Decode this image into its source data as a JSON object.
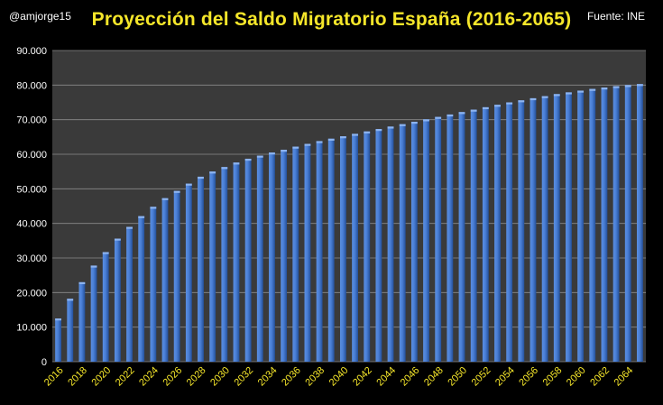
{
  "header": {
    "author": "@amjorge15",
    "title": "Proyección del Saldo Migratorio España (2016-2065)",
    "source": "Fuente: INE"
  },
  "colors": {
    "background": "#000000",
    "plot_area": "#3a3a3a",
    "title": "#f5e62a",
    "bar": "#3f74c8",
    "bar_highlight": "#8db4f0",
    "x_tick": "#f5e62a",
    "y_tick": "#ffffff"
  },
  "chart_data": {
    "type": "bar",
    "title": "Proyección del Saldo Migratorio España (2016-2065)",
    "xlabel": "",
    "ylabel": "",
    "ylim": [
      0,
      90000
    ],
    "y_ticks": [
      "0",
      "10.000",
      "20.000",
      "30.000",
      "40.000",
      "50.000",
      "60.000",
      "70.000",
      "80.000",
      "90.000"
    ],
    "x_tick_labels": [
      "2016",
      "2018",
      "2020",
      "2022",
      "2024",
      "2026",
      "2028",
      "2030",
      "2032",
      "2034",
      "2036",
      "2038",
      "2040",
      "2042",
      "2044",
      "2046",
      "2048",
      "2050",
      "2052",
      "2054",
      "2056",
      "2058",
      "2060",
      "2062",
      "2064"
    ],
    "grid": true,
    "legend": "none",
    "categories": [
      "2016",
      "2017",
      "2018",
      "2019",
      "2020",
      "2021",
      "2022",
      "2023",
      "2024",
      "2025",
      "2026",
      "2027",
      "2028",
      "2029",
      "2030",
      "2031",
      "2032",
      "2033",
      "2034",
      "2035",
      "2036",
      "2037",
      "2038",
      "2039",
      "2040",
      "2041",
      "2042",
      "2043",
      "2044",
      "2045",
      "2046",
      "2047",
      "2048",
      "2049",
      "2050",
      "2051",
      "2052",
      "2053",
      "2054",
      "2055",
      "2056",
      "2057",
      "2058",
      "2059",
      "2060",
      "2061",
      "2062",
      "2063",
      "2064",
      "2065"
    ],
    "values": [
      12500,
      18200,
      23000,
      27800,
      31700,
      35600,
      39000,
      42100,
      44800,
      47300,
      49400,
      51500,
      53500,
      55000,
      56300,
      57600,
      58700,
      59600,
      60500,
      61300,
      62200,
      63000,
      63800,
      64500,
      65200,
      65900,
      66600,
      67300,
      68000,
      68700,
      69400,
      70100,
      70800,
      71500,
      72200,
      72900,
      73600,
      74300,
      75000,
      75600,
      76200,
      76800,
      77400,
      77900,
      78400,
      78900,
      79300,
      79700,
      80000,
      80300
    ]
  }
}
